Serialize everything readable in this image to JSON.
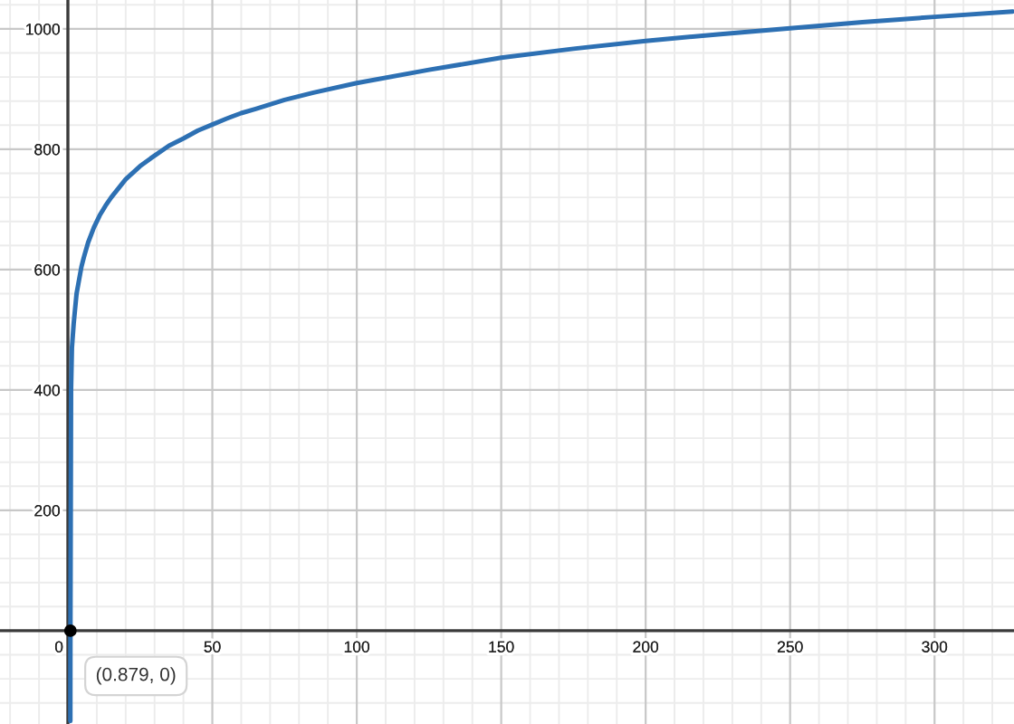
{
  "chart_data": {
    "type": "line",
    "xlim": [
      -23.5,
      327.5
    ],
    "ylim": [
      -155,
      1048
    ],
    "xticks": [
      {
        "value": -20,
        "label": null
      },
      {
        "value": -10,
        "label": null
      },
      0,
      {
        "value": 10,
        "label": null
      },
      {
        "value": 20,
        "label": null
      },
      {
        "value": 30,
        "label": null
      },
      {
        "value": 40,
        "label": null
      },
      50,
      {
        "value": 60,
        "label": null
      },
      {
        "value": 70,
        "label": null
      },
      {
        "value": 80,
        "label": null
      },
      {
        "value": 90,
        "label": null
      },
      100,
      {
        "value": 110,
        "label": null
      },
      {
        "value": 120,
        "label": null
      },
      {
        "value": 130,
        "label": null
      },
      {
        "value": 140,
        "label": null
      },
      150,
      {
        "value": 160,
        "label": null
      },
      {
        "value": 170,
        "label": null
      },
      {
        "value": 180,
        "label": null
      },
      {
        "value": 190,
        "label": null
      },
      200,
      {
        "value": 210,
        "label": null
      },
      {
        "value": 220,
        "label": null
      },
      {
        "value": 230,
        "label": null
      },
      {
        "value": 240,
        "label": null
      },
      250,
      {
        "value": 260,
        "label": null
      },
      {
        "value": 270,
        "label": null
      },
      {
        "value": 280,
        "label": null
      },
      {
        "value": 290,
        "label": null
      },
      300,
      {
        "value": 310,
        "label": null
      },
      {
        "value": 320,
        "label": null
      }
    ],
    "yticks": [
      {
        "value": -120,
        "label": null
      },
      {
        "value": -80,
        "label": null
      },
      {
        "value": -40,
        "label": null
      },
      {
        "value": 40,
        "label": null
      },
      {
        "value": 80,
        "label": null
      },
      {
        "value": 120,
        "label": null
      },
      {
        "value": 160,
        "label": null
      },
      200,
      {
        "value": 240,
        "label": null
      },
      {
        "value": 280,
        "label": null
      },
      {
        "value": 320,
        "label": null
      },
      {
        "value": 360,
        "label": null
      },
      400,
      {
        "value": 440,
        "label": null
      },
      {
        "value": 480,
        "label": null
      },
      {
        "value": 520,
        "label": null
      },
      {
        "value": 560,
        "label": null
      },
      600,
      {
        "value": 640,
        "label": null
      },
      {
        "value": 680,
        "label": null
      },
      {
        "value": 720,
        "label": null
      },
      {
        "value": 760,
        "label": null
      },
      800,
      {
        "value": 840,
        "label": null
      },
      {
        "value": 880,
        "label": null
      },
      {
        "value": 920,
        "label": null
      },
      {
        "value": 960,
        "label": null
      },
      1000,
      {
        "value": 1040,
        "label": null
      }
    ],
    "grid": true,
    "series": [
      {
        "color": "#2d70b3",
        "x": [
          0.85,
          0.879,
          1.1,
          1.4,
          2,
          3,
          4.7,
          5.5,
          7,
          9,
          11,
          13,
          15,
          20,
          25,
          28.7,
          35,
          40,
          45,
          50,
          55,
          60,
          65,
          75,
          85,
          100,
          125,
          150,
          175,
          200,
          225,
          250,
          275,
          300,
          327
        ],
        "values": [
          -150,
          0,
          400,
          470,
          510,
          560,
          605,
          620,
          645,
          670,
          690,
          706,
          720,
          750,
          772,
          785,
          806,
          818,
          831,
          841,
          851,
          860,
          867,
          882,
          894,
          910,
          932,
          952,
          967,
          980,
          991,
          1001,
          1011,
          1020,
          1029
        ]
      },
      {
        "type": "scatter",
        "color": "#000000",
        "marker": "circle",
        "x": [
          0.879
        ],
        "values": [
          0
        ]
      }
    ],
    "annotations": [
      {
        "text": "(0.879, 0)",
        "x": 0.879,
        "y": 0
      }
    ]
  }
}
